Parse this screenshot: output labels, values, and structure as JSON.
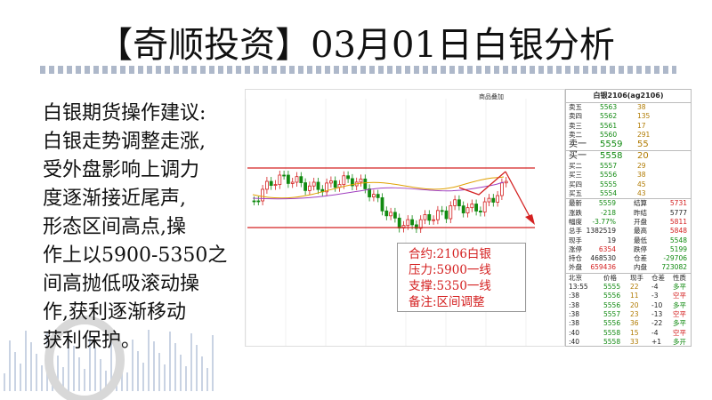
{
  "title": "【奇顺投资】03月01日白银分析",
  "advice": {
    "lines": [
      "白银期货操作建议:",
      "白银走势调整走涨,",
      "受外盘影响上调力",
      "度逐渐接近尾声,",
      "形态区间高点,操",
      "作上以5900-5350之",
      "间高抛低吸滚动操",
      "作,获利逐渐移动",
      "获利保护。"
    ]
  },
  "chart": {
    "toolbar": "商品叠加",
    "annotation": [
      "合约:2106白银",
      "压力:5900一线",
      "支撑:5350一线",
      "备注:区间调整"
    ]
  },
  "quote": {
    "header": "白银2106(ag2106)",
    "asks": [
      [
        "卖五",
        "5563",
        "38"
      ],
      [
        "卖四",
        "5562",
        "135"
      ],
      [
        "卖三",
        "5561",
        "17"
      ],
      [
        "卖二",
        "5560",
        "291"
      ],
      [
        "卖一",
        "5559",
        "55"
      ]
    ],
    "bids": [
      [
        "买一",
        "5558",
        "20"
      ],
      [
        "买二",
        "5557",
        "29"
      ],
      [
        "买三",
        "5556",
        "38"
      ],
      [
        "买四",
        "5555",
        "45"
      ],
      [
        "买五",
        "5554",
        "43"
      ]
    ],
    "stats": [
      [
        "最新",
        "5559",
        "结算",
        "5731"
      ],
      [
        "涨跌",
        "-218",
        "昨结",
        "5777"
      ],
      [
        "幅度",
        "-3.77%",
        "开盘",
        "5811"
      ],
      [
        "总手",
        "1382519",
        "最高",
        "5848"
      ],
      [
        "现手",
        "19",
        "最低",
        "5548"
      ],
      [
        "涨停",
        "6354",
        "跌停",
        "5199"
      ],
      [
        "持仓",
        "468530",
        "仓差",
        "-29706"
      ],
      [
        "外盘",
        "659436",
        "内盘",
        "723082"
      ]
    ],
    "trades_header": [
      "北京",
      "价格",
      "现手",
      "仓差",
      "性质"
    ],
    "trades": [
      [
        "13:55",
        "5555",
        "22",
        "-4",
        "多平"
      ],
      [
        ":38",
        "5556",
        "11",
        "-3",
        "空平"
      ],
      [
        ":38",
        "5556",
        "20",
        "-10",
        "多平"
      ],
      [
        ":38",
        "5557",
        "23",
        "-13",
        "空平"
      ],
      [
        ":38",
        "5556",
        "36",
        "-22",
        "多平"
      ],
      [
        ":40",
        "5558",
        "15",
        "-4",
        "空平"
      ],
      [
        ":40",
        "5558",
        "33",
        "+1",
        "多开"
      ]
    ]
  }
}
